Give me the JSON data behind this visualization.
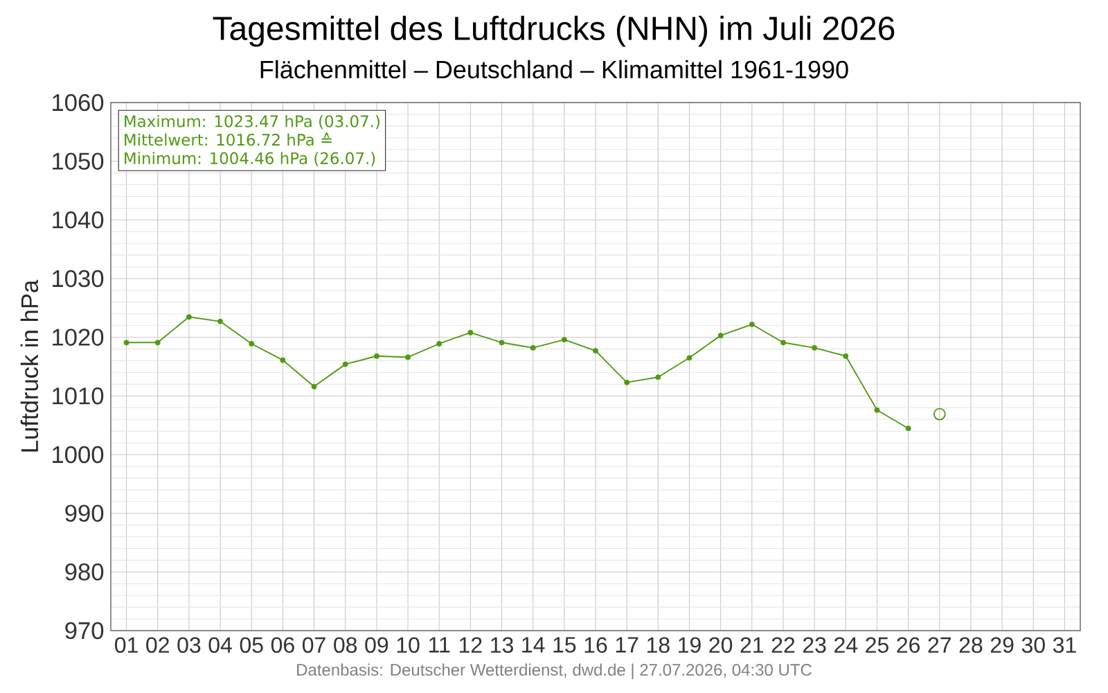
{
  "chart_data": {
    "type": "line",
    "title": "Tagesmittel des Luftdrucks (NHN) im Juli 2026",
    "subtitle": "Flächenmittel – Deutschland – Klimamittel 1961-1990",
    "ylabel": "Luftdruck in hPa",
    "categories": [
      "01",
      "02",
      "03",
      "04",
      "05",
      "06",
      "07",
      "08",
      "09",
      "10",
      "11",
      "12",
      "13",
      "14",
      "15",
      "16",
      "17",
      "18",
      "19",
      "20",
      "21",
      "22",
      "23",
      "24",
      "25",
      "26",
      "27",
      "28",
      "29",
      "30",
      "31"
    ],
    "series": [
      {
        "color": "#509a14",
        "marker": "circle",
        "values": [
          1019.1,
          1019.1,
          1023.47,
          1022.7,
          1018.9,
          1016.1,
          1011.6,
          1015.4,
          1016.8,
          1016.6,
          1018.9,
          1020.8,
          1019.1,
          1018.2,
          1019.6,
          1017.7,
          1012.3,
          1013.2,
          1016.5,
          1020.3,
          1022.2,
          1019.1,
          1018.2,
          1016.8,
          1007.6,
          1004.46,
          null,
          null,
          null,
          null,
          null
        ]
      },
      {
        "type": "scatter",
        "color": "#509a14",
        "marker": "circle",
        "x": [
          "27"
        ],
        "values": [
          1006.9
        ]
      }
    ],
    "ylim": [
      970,
      1060
    ],
    "yticks": [
      970,
      980,
      990,
      1000,
      1010,
      1020,
      1030,
      1040,
      1050,
      1060
    ],
    "grid": true,
    "annotations": [
      "Maximum: 1023.47 hPa (03.07.)",
      "Mittelwert: 1016.72 hPa ≙",
      "Minimum: 1004.46 hPa (26.07.)",
      "Datenbasis: Deutscher Wetterdienst, dwd.de | 27.07.2026, 04:30 UTC"
    ]
  }
}
